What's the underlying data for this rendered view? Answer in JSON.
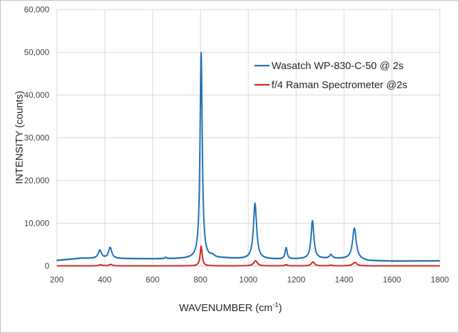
{
  "chart_data": {
    "type": "line",
    "title": "",
    "xlabel_main": "WAVENUMBER (cm",
    "xlabel_sup": "-1",
    "xlabel_end": ")",
    "ylabel": "INTENSITY (counts)",
    "xlim": [
      200,
      1800
    ],
    "ylim": [
      0,
      60000
    ],
    "x_ticks": [
      "200",
      "400",
      "600",
      "800",
      "1000",
      "1200",
      "1400",
      "1600",
      "1800"
    ],
    "y_ticks": [
      "0",
      "10,000",
      "20,000",
      "30,000",
      "40,000",
      "50,000",
      "60,000"
    ],
    "grid": true,
    "legend_position": "top-right",
    "series": [
      {
        "name": "Wasatch WP-830-C-50 @ 2s",
        "color": "#1f6fb4",
        "baseline": [
          [
            200,
            1300
          ],
          [
            300,
            1800
          ],
          [
            400,
            1750
          ],
          [
            600,
            1650
          ],
          [
            800,
            1700
          ],
          [
            900,
            1800
          ],
          [
            1000,
            1600
          ],
          [
            1150,
            1550
          ],
          [
            1300,
            1700
          ],
          [
            1450,
            1650
          ],
          [
            1500,
            1200
          ],
          [
            1600,
            1150
          ],
          [
            1800,
            1200
          ]
        ],
        "peaks": [
          {
            "x": 380,
            "h": 1900,
            "w": 8
          },
          {
            "x": 423,
            "h": 2600,
            "w": 8
          },
          {
            "x": 655,
            "h": 300,
            "w": 5
          },
          {
            "x": 803,
            "h": 48200,
            "w": 5.5
          },
          {
            "x": 850,
            "h": 500,
            "w": 10
          },
          {
            "x": 1028,
            "h": 13000,
            "w": 8
          },
          {
            "x": 1158,
            "h": 2700,
            "w": 5
          },
          {
            "x": 1268,
            "h": 8900,
            "w": 7
          },
          {
            "x": 1345,
            "h": 900,
            "w": 7
          },
          {
            "x": 1443,
            "h": 7200,
            "w": 9
          }
        ]
      },
      {
        "name": "f/4 Raman Spectrometer @2s",
        "color": "#d2231e",
        "baseline": [
          [
            200,
            30
          ],
          [
            1800,
            30
          ]
        ],
        "peaks": [
          {
            "x": 383,
            "h": 250,
            "w": 8
          },
          {
            "x": 425,
            "h": 350,
            "w": 8
          },
          {
            "x": 803,
            "h": 4600,
            "w": 5
          },
          {
            "x": 1030,
            "h": 1200,
            "w": 9
          },
          {
            "x": 1158,
            "h": 300,
            "w": 5
          },
          {
            "x": 1270,
            "h": 900,
            "w": 8
          },
          {
            "x": 1345,
            "h": 150,
            "w": 7
          },
          {
            "x": 1445,
            "h": 800,
            "w": 10
          }
        ]
      }
    ]
  }
}
